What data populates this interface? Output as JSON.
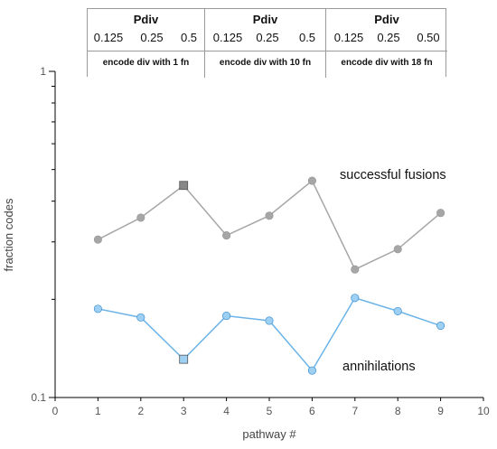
{
  "chart_data": {
    "type": "line",
    "x": [
      1,
      2,
      3,
      4,
      5,
      6,
      7,
      8,
      9
    ],
    "series": [
      {
        "name": "successful fusions",
        "values": [
          0.305,
          0.356,
          0.447,
          0.314,
          0.361,
          0.462,
          0.247,
          0.285,
          0.368
        ],
        "color": "#a6a6a6",
        "marker_color": "#a6a6a6",
        "highlight_index": 2,
        "highlight_color": "#888888"
      },
      {
        "name": "annihilations",
        "values": [
          0.187,
          0.176,
          0.131,
          0.178,
          0.172,
          0.121,
          0.202,
          0.184,
          0.166
        ],
        "color": "#6cb4e8",
        "marker_color": "#9dd0f3",
        "highlight_index": 2,
        "highlight_color": "#9dd0f3"
      }
    ],
    "xlabel": "pathway #",
    "ylabel": "fraction codes",
    "xlim": [
      0,
      10
    ],
    "ylim": [
      0.1,
      1
    ],
    "yscale": "log",
    "xticks": [
      "0",
      "1",
      "2",
      "3",
      "4",
      "5",
      "6",
      "7",
      "8",
      "9",
      "10"
    ],
    "yticks": [
      "0.1",
      "1"
    ],
    "grid": false
  },
  "table": {
    "groups": [
      {
        "header": "Pdiv",
        "values": [
          "0.125",
          "0.25",
          "0.5"
        ],
        "footer": "encode div with 1 fn"
      },
      {
        "header": "Pdiv",
        "values": [
          "0.125",
          "0.25",
          "0.5"
        ],
        "footer": "encode div with 10 fn"
      },
      {
        "header": "Pdiv",
        "values": [
          "0.125",
          "0.25",
          "0.50"
        ],
        "footer": "encode div with 18 fn"
      }
    ]
  }
}
